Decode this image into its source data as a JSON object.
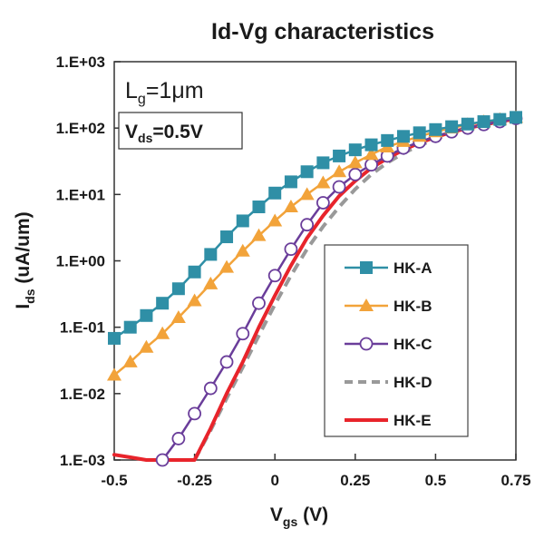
{
  "chart_data": {
    "type": "line",
    "title": "Id-Vg characteristics",
    "xlabel": {
      "main": "V",
      "sub": "gs",
      "unit": " (V)"
    },
    "ylabel": {
      "main": "I",
      "sub": "ds",
      "unit": " (uA/um)"
    },
    "xlim": [
      -0.5,
      0.75
    ],
    "ylim": [
      0.001,
      1000
    ],
    "y_scale": "log",
    "grid": false,
    "legend_position": "center-right",
    "x_ticks": [
      "-0.5",
      "-0.25",
      "0",
      "0.25",
      "0.5",
      "0.75"
    ],
    "x_tick_values": [
      -0.5,
      -0.25,
      0,
      0.25,
      0.5,
      0.75
    ],
    "y_ticks": [
      "1.E-03",
      "1.E-02",
      "1.E-01",
      "1.E+00",
      "1.E+01",
      "1.E+02",
      "1.E+03"
    ],
    "y_tick_values": [
      0.001,
      0.01,
      0.1,
      1,
      10,
      100,
      1000
    ],
    "annotations": {
      "lg": {
        "main": "L",
        "sub": "g",
        "rest": "=1μm"
      },
      "vds": {
        "main": "V",
        "sub": "ds",
        "rest": "=0.5V"
      }
    },
    "series": [
      {
        "name": "HK-A",
        "color": "#2f8fa6",
        "marker": "square",
        "line": "solid",
        "x": [
          -0.5,
          -0.45,
          -0.4,
          -0.35,
          -0.3,
          -0.25,
          -0.2,
          -0.15,
          -0.1,
          -0.05,
          0,
          0.05,
          0.1,
          0.15,
          0.2,
          0.25,
          0.3,
          0.35,
          0.4,
          0.45,
          0.5,
          0.55,
          0.6,
          0.65,
          0.7,
          0.75
        ],
        "y": [
          0.068,
          0.1,
          0.15,
          0.23,
          0.38,
          0.68,
          1.25,
          2.3,
          4.0,
          6.5,
          10.5,
          15.5,
          22,
          30,
          38,
          47,
          56,
          65,
          75,
          85,
          95,
          105,
          115,
          125,
          135,
          145
        ]
      },
      {
        "name": "HK-B",
        "color": "#f2a33a",
        "marker": "triangle",
        "line": "solid",
        "x": [
          -0.5,
          -0.45,
          -0.4,
          -0.35,
          -0.3,
          -0.25,
          -0.2,
          -0.15,
          -0.1,
          -0.05,
          0,
          0.05,
          0.1,
          0.15,
          0.2,
          0.25,
          0.3,
          0.35,
          0.4,
          0.45,
          0.5,
          0.55,
          0.6,
          0.65,
          0.7,
          0.75
        ],
        "y": [
          0.019,
          0.03,
          0.05,
          0.08,
          0.14,
          0.25,
          0.45,
          0.8,
          1.4,
          2.4,
          4.0,
          6.5,
          10,
          15,
          22,
          30,
          40,
          52,
          63,
          75,
          88,
          100,
          113,
          125,
          135,
          145
        ]
      },
      {
        "name": "HK-C",
        "color": "#6a3d9a",
        "marker": "circle-open",
        "line": "solid",
        "x": [
          -0.35,
          -0.3,
          -0.25,
          -0.2,
          -0.15,
          -0.1,
          -0.05,
          0,
          0.05,
          0.1,
          0.15,
          0.2,
          0.25,
          0.3,
          0.35,
          0.4,
          0.45,
          0.5,
          0.55,
          0.6,
          0.65,
          0.7,
          0.75
        ],
        "y": [
          0.001,
          0.0021,
          0.005,
          0.012,
          0.03,
          0.08,
          0.23,
          0.6,
          1.5,
          3.5,
          7.5,
          13,
          20,
          28,
          38,
          50,
          62,
          75,
          88,
          100,
          113,
          125,
          140
        ]
      },
      {
        "name": "HK-D",
        "color": "#999999",
        "marker": "none",
        "line": "dashed",
        "x": [
          -0.25,
          -0.2,
          -0.15,
          -0.1,
          -0.05,
          0,
          0.05,
          0.1,
          0.15,
          0.2,
          0.25,
          0.3,
          0.35,
          0.4,
          0.45,
          0.5,
          0.55,
          0.6,
          0.65,
          0.7,
          0.75
        ],
        "y": [
          0.001,
          0.0028,
          0.0085,
          0.025,
          0.075,
          0.22,
          0.6,
          1.5,
          3.3,
          6.5,
          12,
          20,
          30,
          42,
          55,
          68,
          82,
          95,
          108,
          120,
          135
        ]
      },
      {
        "name": "HK-E",
        "color": "#e8242b",
        "marker": "none",
        "line": "solid",
        "x": [
          -0.5,
          -0.45,
          -0.4,
          -0.35,
          -0.3,
          -0.25,
          -0.2,
          -0.15,
          -0.1,
          -0.05,
          0,
          0.05,
          0.1,
          0.15,
          0.2,
          0.25,
          0.3,
          0.35,
          0.4,
          0.45,
          0.5,
          0.55,
          0.6,
          0.65,
          0.7,
          0.75
        ],
        "y": [
          0.0012,
          0.0011,
          0.001,
          0.001,
          0.001,
          0.001,
          0.003,
          0.01,
          0.03,
          0.1,
          0.3,
          0.85,
          2.2,
          4.8,
          9.5,
          16,
          25,
          35,
          47,
          60,
          73,
          87,
          100,
          112,
          125,
          138
        ]
      }
    ]
  }
}
